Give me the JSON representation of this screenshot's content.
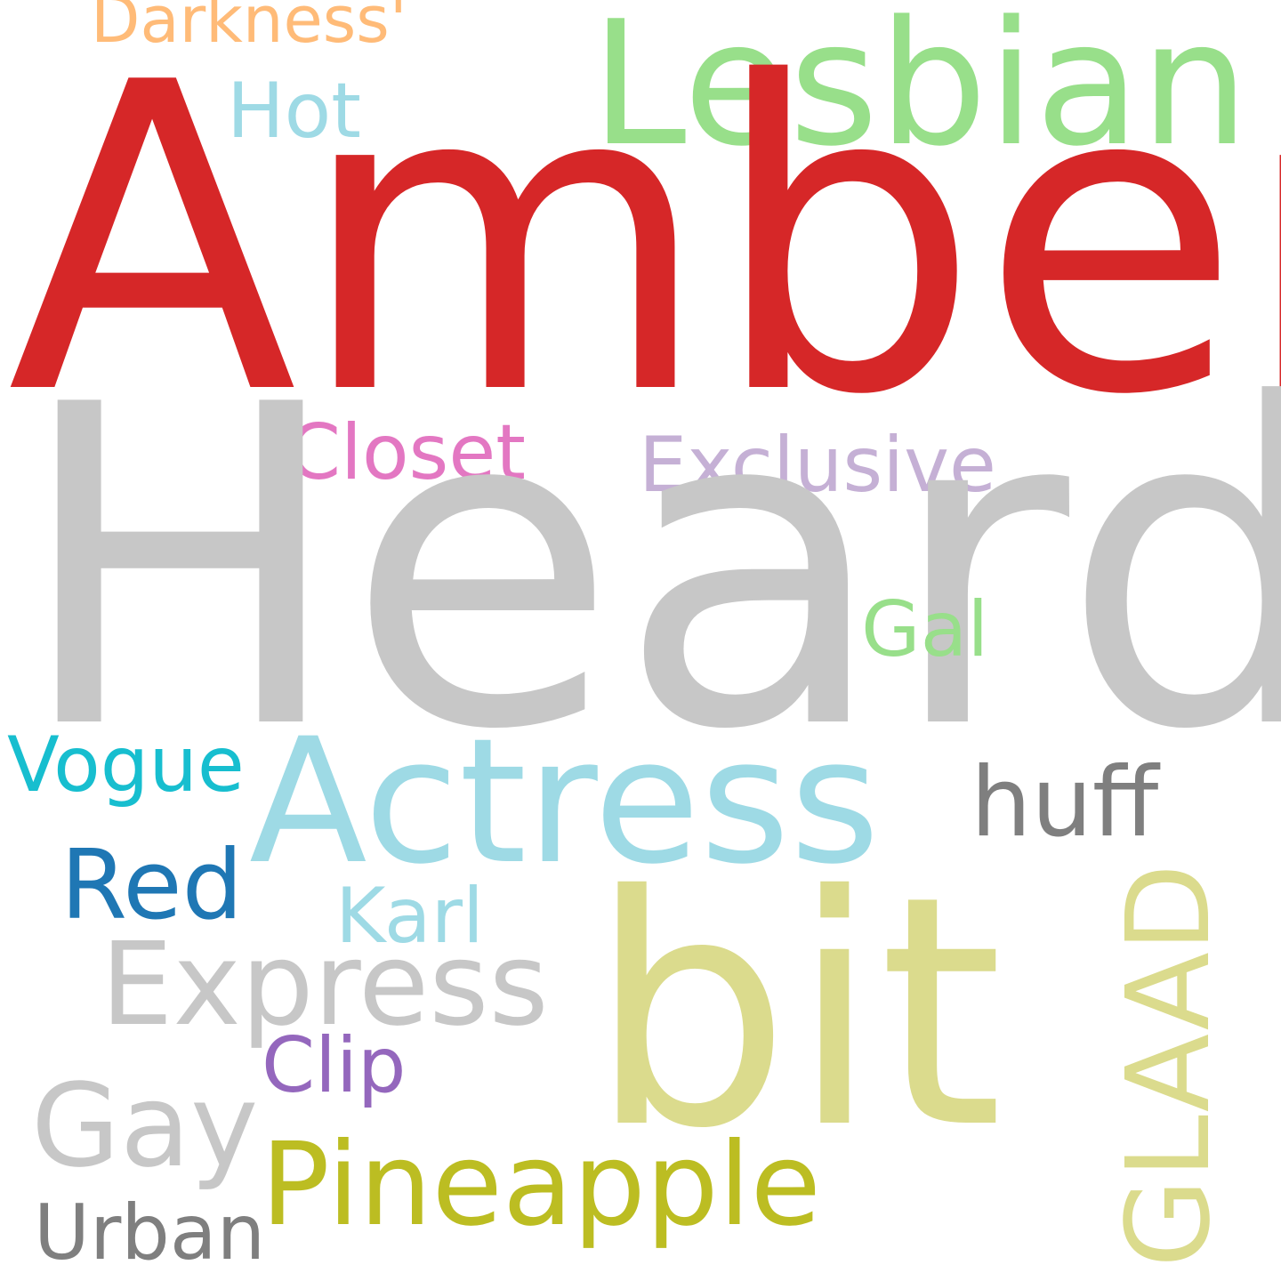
{
  "words": [
    {
      "id": "darkness",
      "text": "Darkness'",
      "color": "#ffbb78"
    },
    {
      "id": "lesbian",
      "text": "Lesbian",
      "color": "#98df8a"
    },
    {
      "id": "hot",
      "text": "Hot",
      "color": "#9edae5"
    },
    {
      "id": "amber",
      "text": "Amber",
      "color": "#d62728"
    },
    {
      "id": "closet",
      "text": "Closet",
      "color": "#e377c2"
    },
    {
      "id": "exclusive",
      "text": "Exclusive",
      "color": "#c5b0d5"
    },
    {
      "id": "heard",
      "text": "Heard",
      "color": "#c7c7c7"
    },
    {
      "id": "gal",
      "text": "Gal",
      "color": "#98df8a"
    },
    {
      "id": "vogue",
      "text": "Vogue",
      "color": "#17becf"
    },
    {
      "id": "actress",
      "text": "Actress",
      "color": "#9edae5"
    },
    {
      "id": "huff",
      "text": "huff",
      "color": "#7f7f7f"
    },
    {
      "id": "red",
      "text": "Red",
      "color": "#1f77b4"
    },
    {
      "id": "karl",
      "text": "Karl",
      "color": "#9edae5"
    },
    {
      "id": "express",
      "text": "Express",
      "color": "#c7c7c7"
    },
    {
      "id": "bit",
      "text": "bit",
      "color": "#dbdb8d"
    },
    {
      "id": "glaad",
      "text": "GLAAD",
      "color": "#dbdb8d"
    },
    {
      "id": "clip",
      "text": "Clip",
      "color": "#9467bd"
    },
    {
      "id": "gay",
      "text": "Gay",
      "color": "#c7c7c7"
    },
    {
      "id": "pineapple",
      "text": "Pineapple",
      "color": "#bcbd22"
    },
    {
      "id": "urban",
      "text": "Urban",
      "color": "#7f7f7f"
    }
  ]
}
